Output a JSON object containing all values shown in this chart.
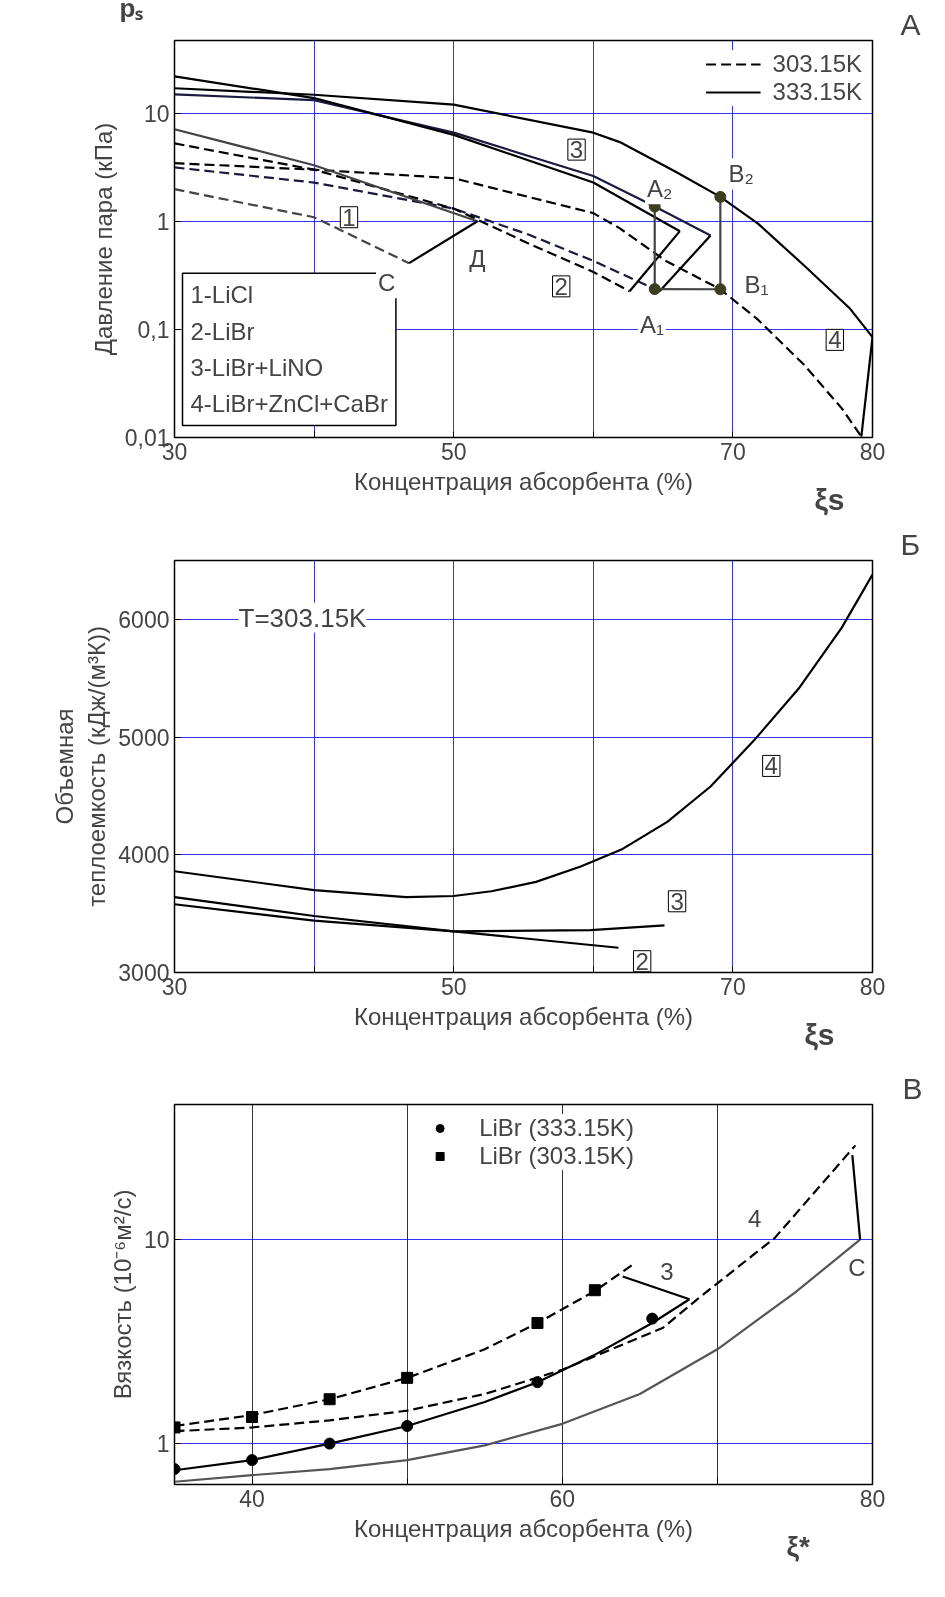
{
  "chart_data": [
    {
      "type": "line",
      "xlabel": "Концентрация абсорбента (%)",
      "ylabel": "Давление пара (кПа)",
      "log": "y",
      "xlim": [
        30,
        80
      ],
      "ylim": [
        0.01,
        47
      ],
      "xticks": [
        30,
        {
          "value": 40,
          "label": null
        },
        50,
        {
          "value": 60,
          "label": null
        },
        70,
        80
      ],
      "yticks": [
        {
          "value": 0.01,
          "label": "0,01"
        },
        {
          "value": 0.1,
          "label": "0,1"
        },
        1,
        10
      ],
      "grid": true,
      "legend": "top right",
      "annotations": [
        "А",
        "pₛ",
        "ξs",
        "1-LiCl",
        "2-LiBr",
        "3-LiBr+LiNO",
        "4-LiBr+ZnCl+CaBr",
        {
          "text": "1",
          "x": 42.5,
          "y": 1.09
        },
        {
          "text": "2",
          "x": 57.7,
          "y": 0.25
        },
        {
          "text": "3",
          "x": 58.8,
          "y": 4.6
        },
        {
          "text": "4",
          "x": 77.3,
          "y": 0.08
        },
        {
          "text": "A₂",
          "x": 64.75,
          "y": 2.0
        },
        {
          "text": "B₂",
          "x": 70.6,
          "y": 2.74
        },
        {
          "text": "B₁",
          "x": 71.7,
          "y": 0.26
        },
        {
          "text": "A₁",
          "x": 64.2,
          "y": 0.11
        },
        {
          "text": "C",
          "x": 45.2,
          "y": 0.27
        },
        {
          "text": "Д",
          "x": 51.7,
          "y": 0.45
        }
      ],
      "series": [
        {
          "name": "303.15K",
          "color": "#000000",
          "line_style": "dashed",
          "x": [
            30,
            40,
            50,
            60,
            61.9,
            65.2,
            69.1,
            71.8,
            75.1,
            77.8,
            79.2
          ],
          "values": [
            3.45,
            3.0,
            2.5,
            1.19,
            0.86,
            0.43,
            0.235,
            0.123,
            0.047,
            0.0186,
            0.0102
          ]
        },
        {
          "name": "333.15K",
          "color": "#000000",
          "line_style": "solid",
          "x": [
            30,
            40,
            50,
            60,
            61.9,
            65.9,
            69.1,
            71.8,
            75.1,
            78.4,
            80
          ],
          "values": [
            17,
            14.8,
            12,
            6.6,
            5.4,
            2.87,
            1.68,
            0.95,
            0.39,
            0.155,
            0.085
          ]
        },
        {
          "color": "#000000",
          "line_style": "solid",
          "x": [
            80,
            79.2
          ],
          "values": [
            0.085,
            0.0102
          ]
        },
        {
          "color": "#1a1a40",
          "line_style": "solid",
          "x": [
            30,
            40,
            50,
            60,
            64.4,
            68.4
          ],
          "values": [
            14.9,
            13.2,
            6.6,
            2.62,
            1.37,
            0.74
          ]
        },
        {
          "color": "#1a1a40",
          "line_style": "dashed",
          "x": [
            30,
            40,
            50,
            55.4,
            60,
            64.4
          ],
          "values": [
            3.15,
            2.28,
            1.31,
            0.75,
            0.43,
            0.236
          ]
        },
        {
          "color": "#000000",
          "line_style": "solid",
          "x": [
            68.4,
            64.75
          ],
          "values": [
            0.74,
            0.225
          ]
        },
        {
          "color": "#000000",
          "line_style": "solid",
          "x": [
            30,
            40,
            50,
            60,
            66.2
          ],
          "values": [
            21.9,
            13.8,
            6.3,
            2.28,
            0.81
          ]
        },
        {
          "color": "#000000",
          "line_style": "dashed",
          "x": [
            30,
            40,
            50,
            55.4,
            60,
            62.6
          ],
          "values": [
            5.25,
            3.0,
            1.31,
            0.62,
            0.34,
            0.225
          ]
        },
        {
          "color": "#000000",
          "line_style": "solid",
          "x": [
            66.2,
            62.6
          ],
          "values": [
            0.81,
            0.225
          ]
        },
        {
          "color": "#444444",
          "line_style": "solid",
          "x": [
            30,
            40,
            51.7
          ],
          "values": [
            7.1,
            3.3,
            1.0
          ]
        },
        {
          "color": "#444444",
          "line_style": "dashed",
          "x": [
            30,
            40,
            46.8
          ],
          "values": [
            1.98,
            1.09,
            0.41
          ]
        },
        {
          "color": "#000000",
          "line_style": "solid",
          "x": [
            46.8,
            51.7
          ],
          "values": [
            0.41,
            1.0
          ]
        },
        {
          "color": "#444444",
          "line_style": "solid",
          "x": [
            64.4,
            64.4
          ],
          "values": [
            0.236,
            1.37
          ]
        },
        {
          "color": "#444444",
          "line_style": "solid",
          "x": [
            69.1,
            69.1
          ],
          "values": [
            0.235,
            1.68
          ]
        },
        {
          "color": "#444444",
          "line_style": "solid",
          "x": [
            64.4,
            69.1
          ],
          "values": [
            0.236,
            0.235
          ]
        },
        {
          "type": "scatter",
          "marker": "circle",
          "color": "#3d3d1f",
          "x": [
            64.4,
            64.4,
            69.1,
            69.1
          ],
          "values": [
            0.236,
            1.37,
            0.235,
            1.68
          ]
        }
      ]
    },
    {
      "type": "line",
      "xlabel": "Концентрация абсорбента (%)",
      "ylabel": "Объемная\nтеплоемкость (кДж/(м³К))",
      "xlim": [
        30,
        80
      ],
      "ylim": [
        3000,
        6500
      ],
      "xticks": [
        30,
        {
          "value": 40,
          "label": null
        },
        50,
        {
          "value": 60,
          "label": null
        },
        70,
        80
      ],
      "yticks": [
        3000,
        4000,
        5000,
        6000
      ],
      "grid": true,
      "annotations": [
        "Б",
        "ξs",
        "T=303.15K",
        {
          "text": "4",
          "x": 72.75,
          "y": 4755
        },
        {
          "text": "3",
          "x": 66.0,
          "y": 3605
        },
        {
          "text": "2",
          "x": 63.5,
          "y": 3096
        }
      ],
      "series": [
        {
          "color": "#000000",
          "line_style": "solid",
          "x": [
            30,
            40,
            46.6,
            50,
            52.7,
            55.9,
            59.1,
            62.1,
            65.3,
            68.4,
            71.5,
            74.7,
            77.8,
            80
          ],
          "values": [
            3860,
            3700,
            3640,
            3650,
            3690,
            3770,
            3900,
            4050,
            4280,
            4580,
            4970,
            5410,
            5930,
            6380
          ]
        },
        {
          "color": "#000000",
          "line_style": "solid",
          "x": [
            30,
            40,
            50,
            59.8,
            65.1
          ],
          "values": [
            3640,
            3480,
            3350,
            3360,
            3400
          ]
        },
        {
          "color": "#000000",
          "line_style": "solid",
          "x": [
            30,
            40,
            50,
            61.8
          ],
          "values": [
            3580,
            3440,
            3350,
            3210
          ]
        }
      ]
    },
    {
      "type": "line",
      "xlabel": "Концентрация абсорбента (%)",
      "ylabel": "Вязкость (10⁻⁶м²/с)",
      "log": "y",
      "xlim": [
        35,
        80
      ],
      "ylim": [
        0.63,
        46
      ],
      "xticks": [
        {
          "value": 40,
          "label": "40"
        },
        {
          "value": 50,
          "label": null
        },
        60,
        {
          "value": 70,
          "label": null
        },
        80
      ],
      "yticks": [
        1,
        10
      ],
      "grid": true,
      "legend": "top",
      "annotations": [
        "В",
        "ξ*",
        {
          "text": "4",
          "x": 72.4,
          "y": 12.7
        },
        {
          "text": "3",
          "x": 66.75,
          "y": 7.0
        },
        {
          "text": "C",
          "x": 79.0,
          "y": 7.3
        }
      ],
      "series": [
        {
          "name": "LiBr (333.15K)",
          "type": "scatter",
          "marker": "circle",
          "color": "#000000",
          "x": [
            35,
            40,
            45,
            50,
            58.4,
            65.8
          ],
          "values": [
            0.75,
            0.83,
            1.0,
            1.22,
            2.0,
            4.1
          ]
        },
        {
          "name": "LiBr (303.15K)",
          "type": "scatter",
          "marker": "square",
          "color": "#000000",
          "x": [
            35,
            40,
            45,
            50,
            58.4,
            62.1
          ],
          "values": [
            1.2,
            1.35,
            1.65,
            2.1,
            3.9,
            5.65
          ]
        },
        {
          "color": "#000000",
          "line_style": "dashed",
          "x": [
            35,
            40,
            45,
            50,
            55,
            58.4,
            62.1,
            64.5
          ],
          "values": [
            1.22,
            1.38,
            1.65,
            2.1,
            2.9,
            3.9,
            5.6,
            7.5
          ]
        },
        {
          "color": "#000000",
          "line_style": "solid",
          "x": [
            35,
            40,
            45,
            50,
            55,
            58.4,
            62,
            65.8,
            68.2
          ],
          "values": [
            0.74,
            0.83,
            1.0,
            1.22,
            1.6,
            2.0,
            2.7,
            3.9,
            5.1
          ]
        },
        {
          "color": "#000000",
          "line_style": "solid",
          "x": [
            63.9,
            68.2
          ],
          "values": [
            6.6,
            5.1
          ]
        },
        {
          "color": "#000000",
          "line_style": "dashed",
          "x": [
            35,
            40,
            45,
            50,
            55,
            60,
            66.5,
            68.7,
            73.7,
            78.9
          ],
          "values": [
            1.15,
            1.2,
            1.3,
            1.45,
            1.75,
            2.3,
            3.7,
            5.1,
            10.2,
            29
          ]
        },
        {
          "color": "#555555",
          "line_style": "solid",
          "x": [
            35,
            40,
            45,
            50,
            55,
            60,
            65,
            70,
            75,
            79.2
          ],
          "values": [
            0.65,
            0.7,
            0.75,
            0.83,
            0.98,
            1.25,
            1.75,
            2.9,
            5.5,
            10
          ]
        },
        {
          "color": "#000000",
          "line_style": "solid",
          "x": [
            79.2,
            78.7
          ],
          "values": [
            10,
            26
          ]
        }
      ]
    }
  ]
}
